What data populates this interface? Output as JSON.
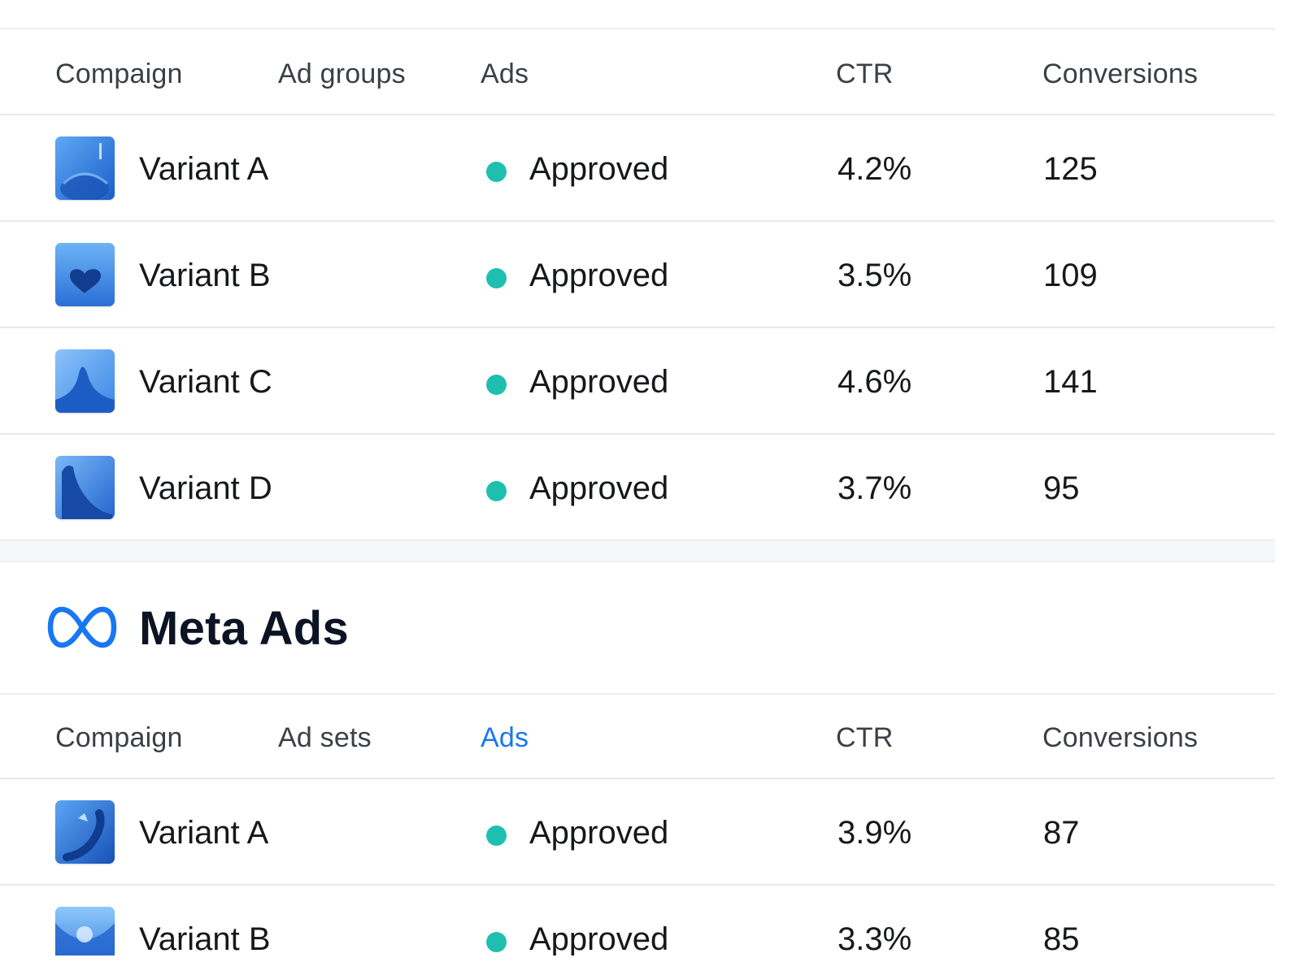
{
  "google_table": {
    "headers": {
      "campaign": "Compaign",
      "ad_groups": "Ad groups",
      "ads": "Ads",
      "ctr": "CTR",
      "conversions": "Conversions"
    },
    "rows": [
      {
        "variant": "Variant A",
        "status": "Approved",
        "ctr": "4.2%",
        "conversions": "125"
      },
      {
        "variant": "Variant B",
        "status": "Approved",
        "ctr": "3.5%",
        "conversions": "109"
      },
      {
        "variant": "Variant C",
        "status": "Approved",
        "ctr": "4.6%",
        "conversions": "141"
      },
      {
        "variant": "Variant D",
        "status": "Approved",
        "ctr": "3.7%",
        "conversions": "95"
      }
    ]
  },
  "meta": {
    "title": "Meta Ads",
    "logo_icon": "meta-infinity-icon",
    "brand_color": "#1877f2"
  },
  "meta_table": {
    "headers": {
      "campaign": "Compaign",
      "ad_sets": "Ad sets",
      "ads": "Ads",
      "ctr": "CTR",
      "conversions": "Conversions"
    },
    "active_tab": "ads",
    "rows": [
      {
        "variant": "Variant A",
        "status": "Approved",
        "ctr": "3.9%",
        "conversions": "87"
      },
      {
        "variant": "Variant B",
        "status": "Approved",
        "ctr": "3.3%",
        "conversions": "85"
      }
    ]
  },
  "colors": {
    "approved_dot": "#1fbfb0",
    "active_header": "#1877f2"
  }
}
